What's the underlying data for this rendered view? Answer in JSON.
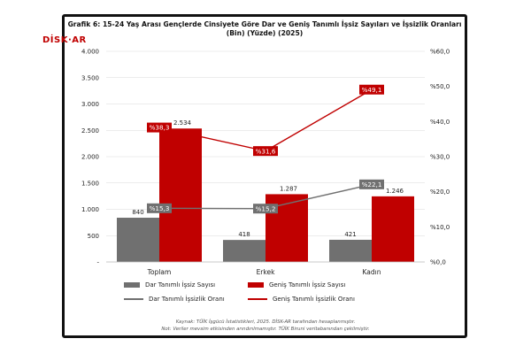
{
  "title_line1": "Grafik 6: 15-24 Yaş Arası Gençlerde Cinsiyete Göre Dar ve Geniş Tanımlı İşsiz Sayıları ve İşsizlik Oranları",
  "title_line2": "(Bin) (Yüzde) (2025)",
  "logo_text": "DİSK·AR",
  "source_line1": "Kaynak: TÜİK İşgücü İstatistikleri, 2025. DİSK-AR tarafından hesaplanmıştır.",
  "source_line2": "Not: Veriler mevsim etkisinden arındırılmamıştır. TÜİK Biruni veritabanından çekilmiştir.",
  "colors": {
    "dar_bar": "#707070",
    "genis_bar": "#c00000",
    "dar_line": "#707070",
    "genis_line": "#c00000",
    "grid": "#d9d9d9"
  },
  "chart_data": {
    "type": "bar",
    "categories": [
      "Toplam",
      "Erkek",
      "Kadın"
    ],
    "series": [
      {
        "name": "Dar Tanımlı İşsiz Sayısı",
        "kind": "bar",
        "axis": "left",
        "values": [
          840,
          418,
          421
        ],
        "labels": [
          "840",
          "418",
          "421"
        ]
      },
      {
        "name": "Geniş Tanımlı İşsiz Sayısı",
        "kind": "bar",
        "axis": "left",
        "values": [
          2534,
          1287,
          1246
        ],
        "labels": [
          "2.534",
          "1.287",
          "1.246"
        ]
      },
      {
        "name": "Dar Tanımlı İşsizlik Oranı",
        "kind": "line",
        "axis": "right",
        "values": [
          15.3,
          15.2,
          22.1
        ],
        "labels": [
          "%15,3",
          "%15,2",
          "%22,1"
        ]
      },
      {
        "name": "Geniş Tanımlı İşsizlik Oranı",
        "kind": "line",
        "axis": "right",
        "values": [
          38.3,
          31.6,
          49.1
        ],
        "labels": [
          "%38,3",
          "%31,6",
          "%49,1"
        ]
      }
    ],
    "ylim_left": [
      0,
      4000
    ],
    "ylim_right": [
      0,
      60
    ],
    "left_ticks": [
      "-",
      "500",
      "1.000",
      "1.500",
      "2.000",
      "2.500",
      "3.000",
      "3.500",
      "4.000"
    ],
    "right_ticks": [
      "%0,0",
      "%10,0",
      "%20,0",
      "%30,0",
      "%40,0",
      "%50,0",
      "%60,0"
    ],
    "legend_position": "bottom",
    "grid": true
  }
}
